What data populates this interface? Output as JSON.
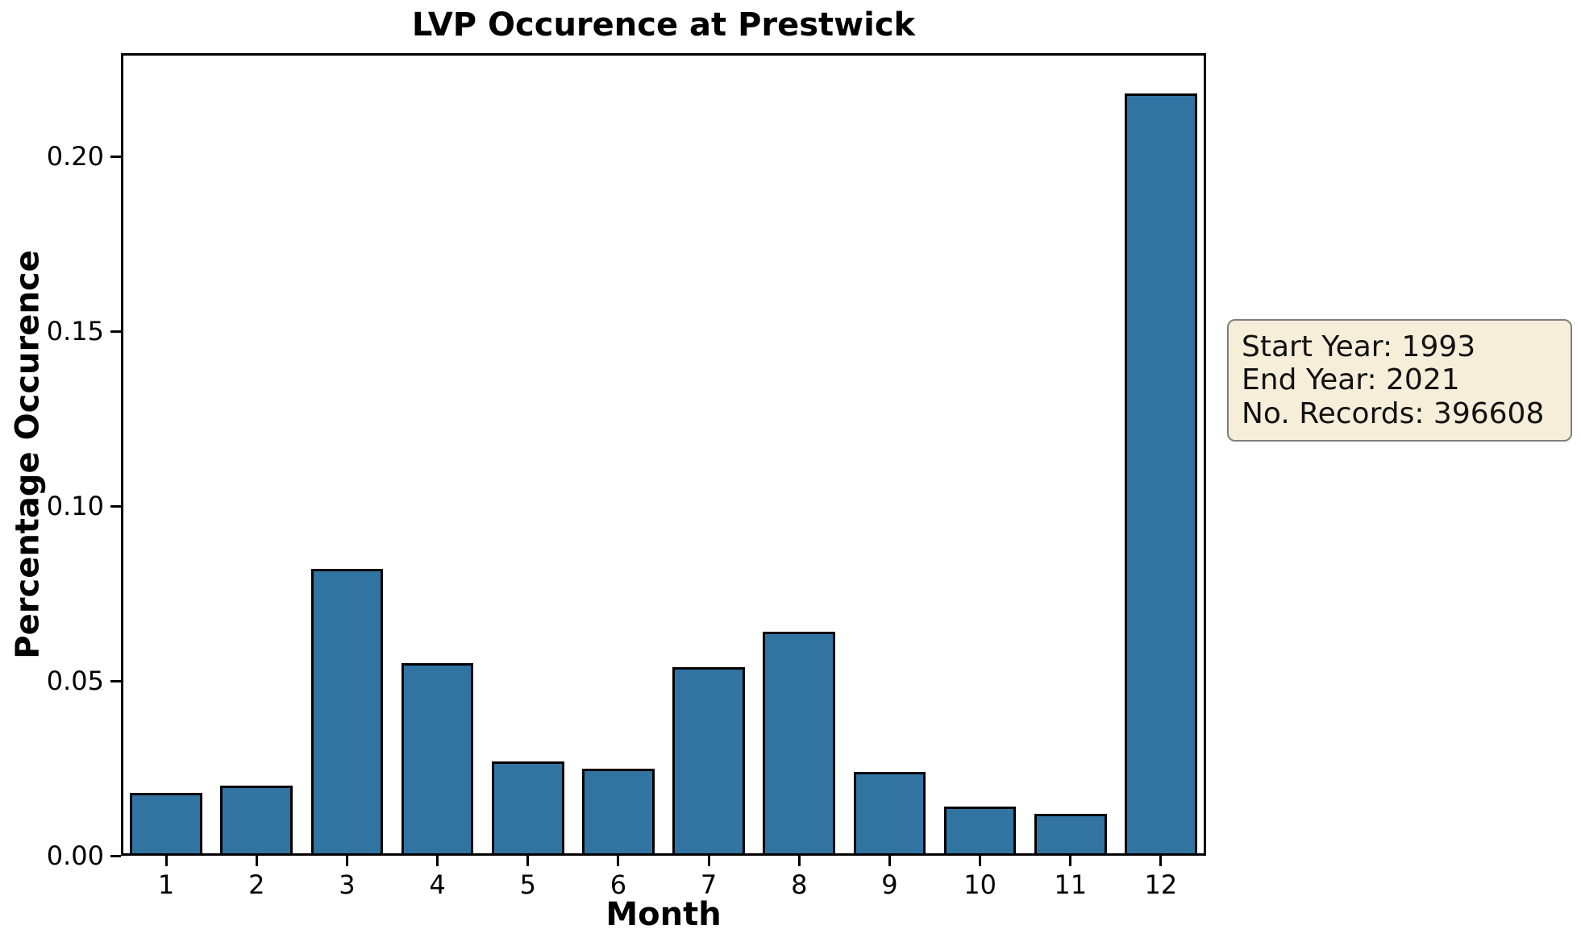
{
  "chart_data": {
    "type": "bar",
    "title": "LVP Occurence at Prestwick",
    "xlabel": "Month",
    "ylabel": "Percentage Occurence",
    "categories": [
      1,
      2,
      3,
      4,
      5,
      6,
      7,
      8,
      9,
      10,
      11,
      12
    ],
    "values": [
      0.018,
      0.02,
      0.082,
      0.055,
      0.027,
      0.025,
      0.054,
      0.064,
      0.024,
      0.014,
      0.012,
      0.218
    ],
    "ytick_labels": [
      "0.00",
      "0.05",
      "0.10",
      "0.15",
      "0.20"
    ],
    "ylim": [
      0,
      0.2296
    ],
    "xlim": [
      0.5,
      12.5
    ],
    "bar_width": 0.8,
    "grid": false,
    "legend": null,
    "colors": {
      "bar_fill": "#3274A1",
      "bar_edge": "#000000",
      "axis": "#000000",
      "text": "#000000"
    }
  },
  "annotation_box": {
    "lines": [
      "Start Year: 1993",
      "End Year: 2021",
      "No. Records: 396608"
    ],
    "background": "#F7EEDA",
    "border": "#7F7F7F"
  }
}
